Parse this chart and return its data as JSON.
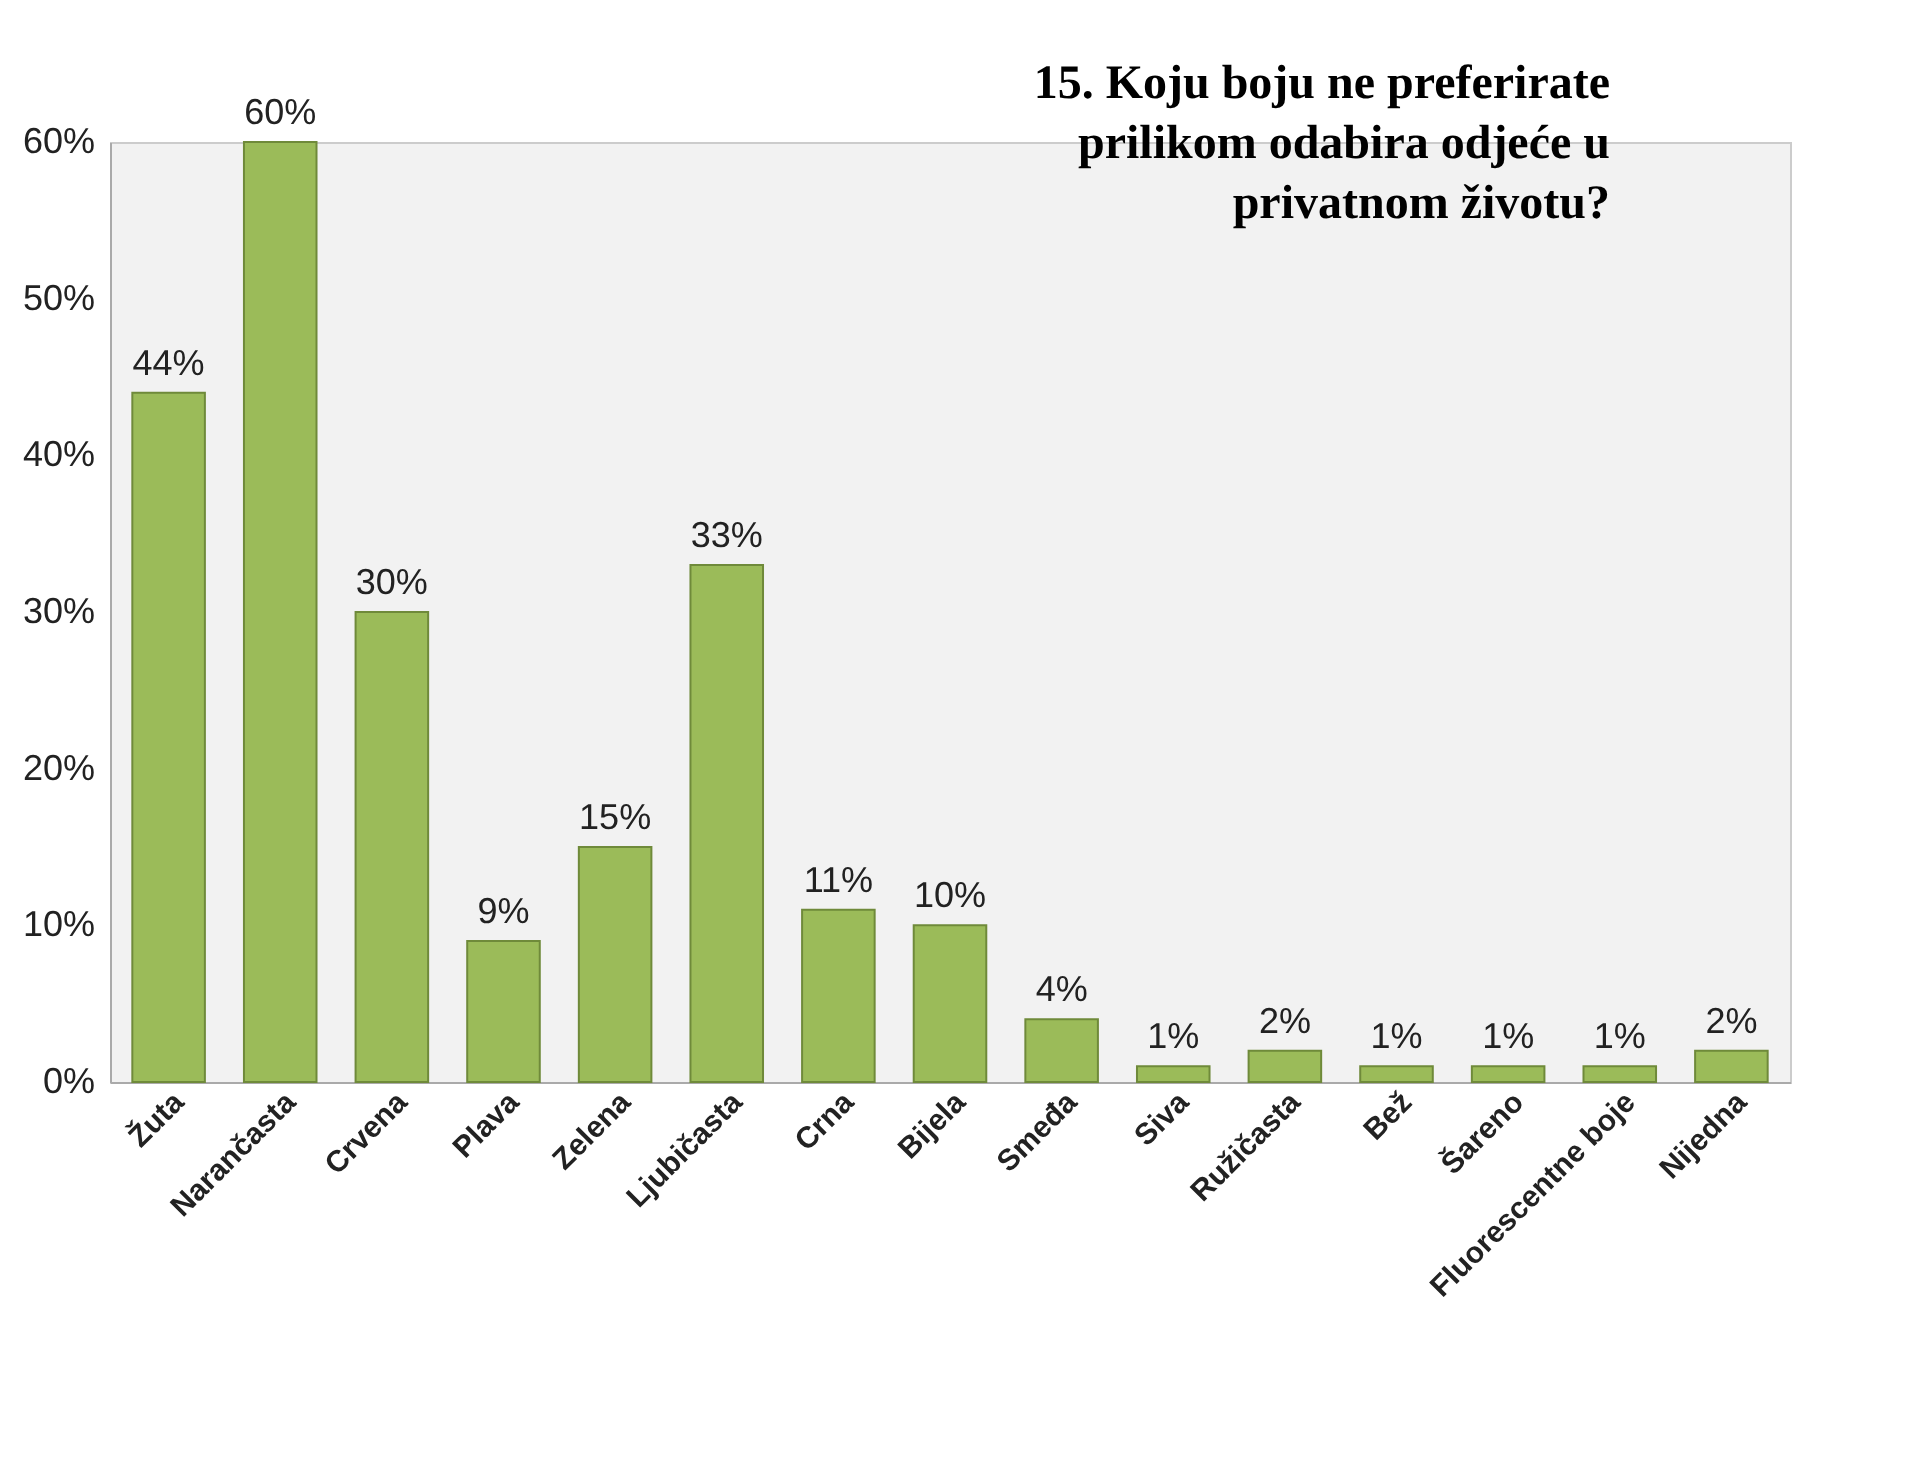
{
  "chart_data": {
    "type": "bar",
    "title": "15. Koju boju ne preferirate prilikom odabira odjeće u privatnom životu?",
    "categories": [
      "Žuta",
      "Narančasta",
      "Crvena",
      "Plava",
      "Zelena",
      "Ljubičasta",
      "Crna",
      "Bijela",
      "Smeđa",
      "Siva",
      "Ružičasta",
      "Bež",
      "Šareno",
      "Fluorescentne boje",
      "Nijedna"
    ],
    "values": [
      44,
      60,
      30,
      9,
      15,
      33,
      11,
      10,
      4,
      1,
      2,
      1,
      1,
      1,
      2
    ],
    "value_labels": [
      "44%",
      "60%",
      "30%",
      "9%",
      "15%",
      "33%",
      "11%",
      "10%",
      "4%",
      "1%",
      "2%",
      "1%",
      "1%",
      "1%",
      "2%"
    ],
    "color": "#9bbb59",
    "ylim": [
      0,
      60
    ],
    "yticks": [
      {
        "value": 0,
        "label": "0%"
      },
      {
        "value": 10,
        "label": "10%"
      },
      {
        "value": 20,
        "label": "20%"
      },
      {
        "value": 30,
        "label": "30%"
      },
      {
        "value": 40,
        "label": "40%"
      },
      {
        "value": 50,
        "label": "50%"
      },
      {
        "value": 60,
        "label": "60%"
      }
    ]
  }
}
